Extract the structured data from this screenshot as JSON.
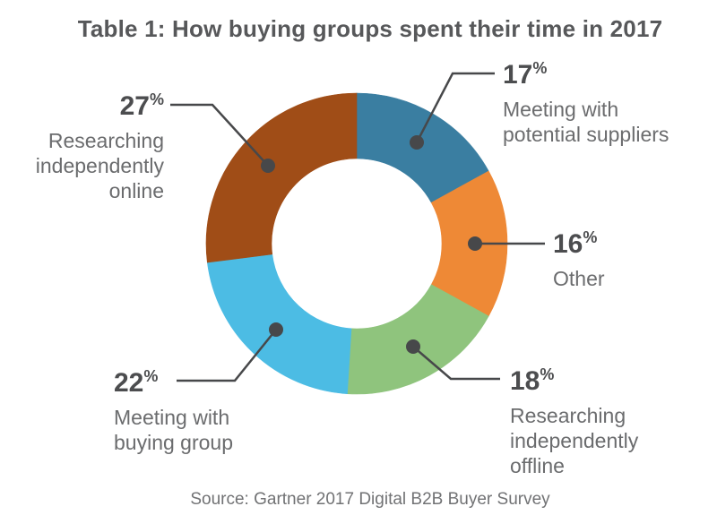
{
  "title": "Table 1: How buying groups spent their time in 2017",
  "source": "Source: Gartner 2017 Digital B2B Buyer Survey",
  "colors": {
    "page_bg": "#ffffff",
    "title_text": "#57585a",
    "number_text": "#4c4d4f",
    "desc_text": "#6b6c6e",
    "source_text": "#717274",
    "leader": "#47484a",
    "donut_hole": "#ffffff"
  },
  "chart_data": {
    "type": "pie",
    "variant": "donut",
    "title": "Table 1: How buying groups spent their time in 2017",
    "source": "Source: Gartner 2017 Digital B2B Buyer Survey",
    "unit": "%",
    "start_angle_deg": 0,
    "direction": "clockwise",
    "hole_ratio": 0.565,
    "legend_position": "callout-labels",
    "segments": [
      {
        "label": "Meeting with potential suppliers",
        "value": 17,
        "color": "#3a7ea1"
      },
      {
        "label": "Other",
        "value": 16,
        "color": "#ee8936"
      },
      {
        "label": "Researching independently offline",
        "value": 18,
        "color": "#8fc47d"
      },
      {
        "label": "Meeting with buying group",
        "value": 22,
        "color": "#4cbce4"
      },
      {
        "label": "Researching independently online",
        "value": 27,
        "color": "#a04d17"
      }
    ]
  },
  "callouts": [
    {
      "value": "17",
      "sign": "%",
      "lines": [
        "Meeting with",
        "potential suppliers"
      ]
    },
    {
      "value": "16",
      "sign": "%",
      "lines": [
        "Other"
      ]
    },
    {
      "value": "18",
      "sign": "%",
      "lines": [
        "Researching",
        "independently",
        "offline"
      ]
    },
    {
      "value": "22",
      "sign": "%",
      "lines": [
        "Meeting with",
        "buying group"
      ]
    },
    {
      "value": "27",
      "sign": "%",
      "lines": [
        "Researching",
        "independently",
        "online"
      ]
    }
  ]
}
